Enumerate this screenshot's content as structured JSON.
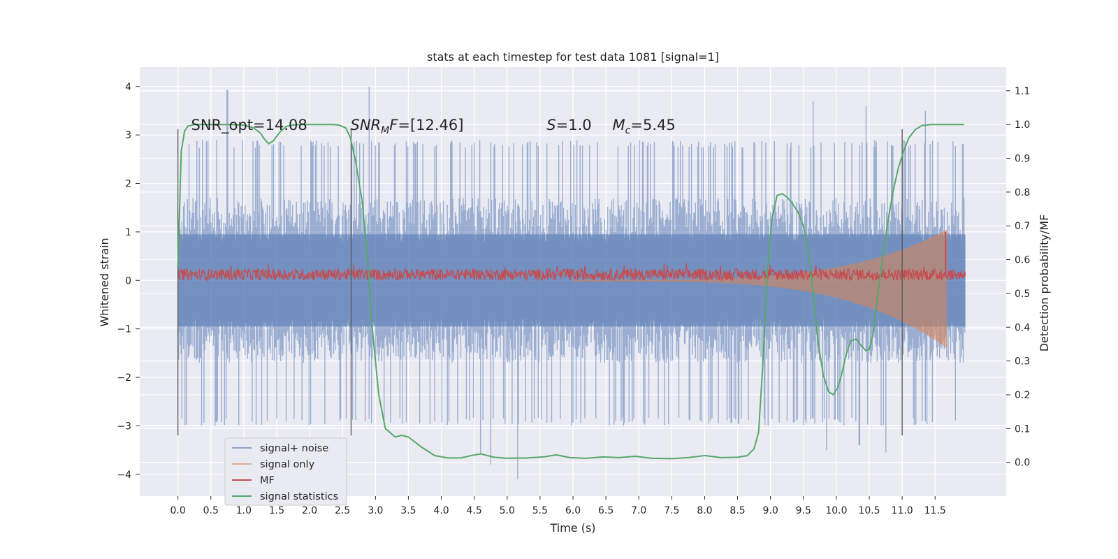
{
  "chart_data": {
    "type": "line",
    "title": "stats at each timestep for test data 1081 [signal=1]",
    "xlabel": "Time (s)",
    "ylabel": "Whitened strain",
    "y2label": "Detection probability/MF",
    "xlim": [
      -0.58,
      12.58
    ],
    "ylim": [
      -4.45,
      4.4
    ],
    "y2lim": [
      -0.1,
      1.17
    ],
    "x_ticks": [
      0.0,
      0.5,
      1.0,
      1.5,
      2.0,
      2.5,
      3.0,
      3.5,
      4.0,
      4.5,
      5.0,
      5.5,
      6.0,
      6.5,
      7.0,
      7.5,
      8.0,
      8.5,
      9.0,
      9.5,
      10.0,
      10.5,
      11.0,
      11.5
    ],
    "x_tick_labels": [
      "0.0",
      "0.5",
      "1.0",
      "1.5",
      "2.0",
      "2.5",
      "3.0",
      "3.5",
      "4.0",
      "4.5",
      "5.0",
      "5.5",
      "6.0",
      "6.5",
      "7.0",
      "7.5",
      "8.0",
      "8.5",
      "9.0",
      "9.5",
      "10.0",
      "10.5",
      "11.0",
      "11.5"
    ],
    "y_ticks": [
      4,
      3,
      2,
      1,
      0,
      -1,
      -2,
      -3,
      -4
    ],
    "y_tick_labels": [
      "4",
      "3",
      "2",
      "1",
      "0",
      "−1",
      "−2",
      "−3",
      "−4"
    ],
    "y2_ticks": [
      1.1,
      1.0,
      0.9,
      0.8,
      0.7,
      0.6,
      0.5,
      0.4,
      0.3,
      0.2,
      0.1,
      0.0
    ],
    "y2_tick_labels": [
      "1.1",
      "1.0",
      "0.9",
      "0.8",
      "0.7",
      "0.6",
      "0.5",
      "0.4",
      "0.3",
      "0.2",
      "0.1",
      "0.0"
    ],
    "grid": true,
    "legend_position": "lower-left",
    "annotations": [
      {
        "x": 0.2,
        "y": 3.1,
        "text": "SNR_opt=14.08"
      },
      {
        "x": 2.62,
        "y": 3.1,
        "text_pre": "SNR",
        "text_sub": "M",
        "text_post": "F=[12.46]"
      },
      {
        "x": 5.6,
        "y": 3.1,
        "text_pre": "S",
        "text_sub": "",
        "text_post": "=1.0"
      },
      {
        "x": 6.6,
        "y": 3.1,
        "text_pre": "M",
        "text_sub": "c",
        "text_post": "=5.45"
      }
    ],
    "vlines": {
      "x": [
        0.0,
        2.63,
        11.0
      ],
      "ymin": -3.2,
      "ymax": 3.12,
      "color": "#555555"
    },
    "series": [
      {
        "name": "signal+ noise",
        "color": "#4c72b0",
        "opacity": 0.5,
        "envelope": {
          "x_start": 0.0,
          "x_end": 11.96,
          "dx": 0.012,
          "typical": 1.25,
          "noise_range": 0.45,
          "peaks": [
            [
              0.75,
              3.93
            ],
            [
              2.9,
              4.0
            ],
            [
              9.65,
              3.7
            ],
            [
              10.45,
              3.6
            ],
            [
              11.35,
              3.5
            ],
            [
              11.96,
              3.62
            ],
            [
              4.6,
              -3.6
            ],
            [
              5.16,
              -4.1
            ],
            [
              4.75,
              -3.8
            ],
            [
              10.75,
              -3.55
            ],
            [
              9.85,
              -3.5
            ],
            [
              10.35,
              -3.4
            ]
          ]
        }
      },
      {
        "name": "signal only",
        "color": "#dd8452",
        "opacity": 0.5,
        "chirp": {
          "x_start": 6.0,
          "x_end": 11.68,
          "amp_start": 0.02,
          "amp_end": 1.4
        }
      },
      {
        "name": "MF",
        "color": "#c44e52",
        "band": {
          "x_start": 0.0,
          "x_end": 11.96,
          "y_center": 0.12,
          "noise": 0.12
        },
        "spike": {
          "x": 11.66,
          "y": 1.0
        }
      },
      {
        "name": "signal statistics",
        "color": "#55a868",
        "x": [
          0.0,
          0.05,
          0.1,
          0.15,
          0.25,
          0.4,
          0.6,
          0.8,
          1.0,
          1.15,
          1.25,
          1.32,
          1.38,
          1.45,
          1.55,
          1.65,
          1.8,
          2.0,
          2.2,
          2.35,
          2.45,
          2.55,
          2.62,
          2.7,
          2.8,
          2.88,
          2.95,
          3.05,
          3.15,
          3.3,
          3.4,
          3.5,
          3.7,
          3.9,
          4.1,
          4.3,
          4.45,
          4.6,
          4.8,
          5.0,
          5.3,
          5.55,
          5.75,
          5.95,
          6.2,
          6.45,
          6.7,
          6.95,
          7.2,
          7.5,
          7.75,
          8.0,
          8.25,
          8.5,
          8.65,
          8.75,
          8.82,
          8.88,
          8.95,
          9.02,
          9.1,
          9.18,
          9.25,
          9.32,
          9.42,
          9.5,
          9.58,
          9.65,
          9.72,
          9.8,
          9.88,
          9.95,
          10.02,
          10.08,
          10.15,
          10.22,
          10.3,
          10.38,
          10.45,
          10.5,
          10.56,
          10.62,
          10.7,
          10.78,
          10.86,
          10.94,
          11.02,
          11.1,
          11.2,
          11.3,
          11.45,
          11.6,
          11.75,
          11.94
        ],
        "y": [
          0.58,
          0.92,
          0.98,
          0.995,
          1.0,
          1.0,
          1.0,
          1.0,
          0.998,
          0.99,
          0.975,
          0.955,
          0.943,
          0.952,
          0.978,
          0.995,
          1.0,
          1.0,
          1.0,
          1.0,
          0.998,
          0.99,
          0.96,
          0.89,
          0.77,
          0.6,
          0.4,
          0.2,
          0.1,
          0.075,
          0.08,
          0.075,
          0.045,
          0.02,
          0.013,
          0.013,
          0.02,
          0.025,
          0.015,
          0.012,
          0.013,
          0.016,
          0.022,
          0.014,
          0.012,
          0.016,
          0.014,
          0.018,
          0.012,
          0.011,
          0.014,
          0.02,
          0.014,
          0.015,
          0.02,
          0.04,
          0.09,
          0.28,
          0.56,
          0.72,
          0.79,
          0.795,
          0.785,
          0.77,
          0.74,
          0.7,
          0.62,
          0.5,
          0.36,
          0.26,
          0.21,
          0.2,
          0.22,
          0.26,
          0.32,
          0.36,
          0.365,
          0.345,
          0.33,
          0.335,
          0.38,
          0.48,
          0.6,
          0.71,
          0.8,
          0.87,
          0.92,
          0.96,
          0.985,
          0.997,
          1.0,
          1.0,
          1.0,
          1.0
        ]
      }
    ]
  }
}
